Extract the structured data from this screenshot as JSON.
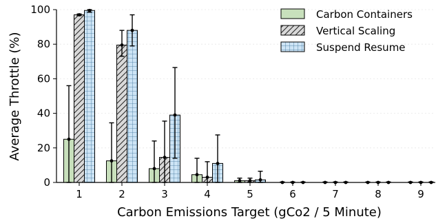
{
  "chart_data": {
    "type": "bar",
    "xlabel": "Carbon Emissions Target (gCo2 / 5 Minute)",
    "ylabel": "Average Throttle (%)",
    "categories": [
      "1",
      "2",
      "3",
      "4",
      "5",
      "6",
      "7",
      "8",
      "9"
    ],
    "ylim": [
      0,
      100
    ],
    "yticks": [
      0,
      20,
      40,
      60,
      80,
      100
    ],
    "grid": "horizontal dotted",
    "legend_position": "top-right",
    "series": [
      {
        "name": "Carbon Containers",
        "color": "#c8e0bc",
        "hatch": "none",
        "values": [
          25,
          12.5,
          8,
          4.5,
          1,
          0,
          0,
          0,
          0
        ],
        "err_low": [
          0,
          0,
          0,
          0,
          0,
          0,
          0,
          0,
          0
        ],
        "err_high": [
          56,
          34.5,
          24,
          14,
          2.5,
          0.3,
          0.3,
          0.3,
          0.3
        ]
      },
      {
        "name": "Vertical Scaling",
        "color": "#d9d9d9",
        "hatch": "diagonal",
        "values": [
          97,
          79.5,
          14.5,
          3,
          1,
          0,
          0,
          0,
          0
        ],
        "err_low": [
          96.5,
          73,
          0,
          0,
          0,
          0,
          0,
          0,
          0
        ],
        "err_high": [
          97.5,
          88,
          35.5,
          12,
          2.5,
          0.3,
          0.3,
          0.3,
          0.3
        ]
      },
      {
        "name": "Suspend Resume",
        "color": "#cde4f5",
        "hatch": "grid",
        "values": [
          99.5,
          88,
          39,
          11,
          1.5,
          0,
          0,
          0,
          0
        ],
        "err_low": [
          98.5,
          79,
          14,
          0,
          0,
          0,
          0,
          0,
          0
        ],
        "err_high": [
          100,
          97,
          66.5,
          27.5,
          6.5,
          0.3,
          0.3,
          0.3,
          0.3
        ]
      }
    ]
  }
}
